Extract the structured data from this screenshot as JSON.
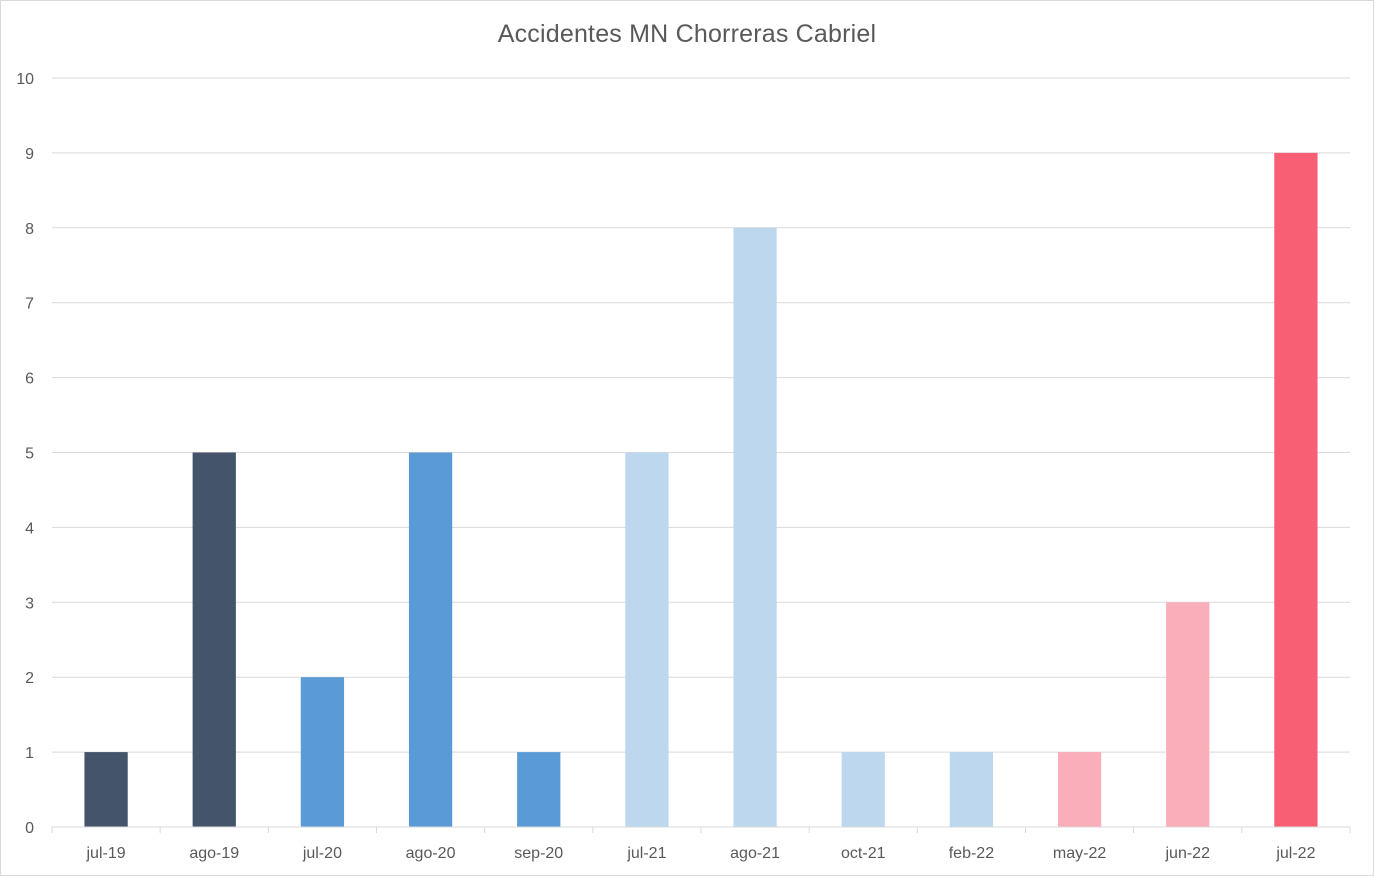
{
  "chart_data": {
    "type": "bar",
    "title": "Accidentes MN Chorreras Cabriel",
    "xlabel": "",
    "ylabel": "",
    "categories": [
      "jul-19",
      "ago-19",
      "jul-20",
      "ago-20",
      "sep-20",
      "jul-21",
      "ago-21",
      "oct-21",
      "feb-22",
      "may-22",
      "jun-22",
      "jul-22"
    ],
    "values": [
      1,
      5,
      2,
      5,
      1,
      5,
      8,
      1,
      1,
      1,
      3,
      9
    ],
    "bar_colors": [
      "#44546a",
      "#44546a",
      "#5b9bd5",
      "#5b9bd5",
      "#5b9bd5",
      "#bdd7ee",
      "#bdd7ee",
      "#bdd7ee",
      "#bdd7ee",
      "#f9aeba",
      "#f9aeba",
      "#f85e74"
    ],
    "ylim": [
      0,
      10
    ],
    "yticks": [
      "0",
      "1",
      "2",
      "3",
      "4",
      "5",
      "6",
      "7",
      "8",
      "9",
      "10"
    ],
    "grid": true,
    "legend": "none"
  }
}
